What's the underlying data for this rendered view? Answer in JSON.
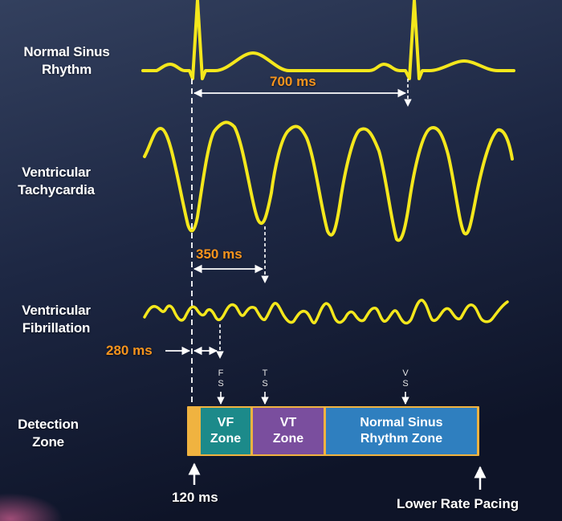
{
  "rows": {
    "nsr_line1": "Normal Sinus",
    "nsr_line2": "Rhythm",
    "vt_line1": "Ventricular",
    "vt_line2": "Tachycardia",
    "vf_line1": "Ventricular",
    "vf_line2": "Fibrillation",
    "dz_line1": "Detection",
    "dz_line2": "Zone"
  },
  "intervals": {
    "nsr": "700 ms",
    "vt": "350 ms",
    "vf": "280 ms",
    "min": "120 ms"
  },
  "markers": {
    "fs_1": "F",
    "fs_2": "S",
    "ts_1": "T",
    "ts_2": "S",
    "vs_1": "V",
    "vs_2": "S"
  },
  "zones": {
    "vf_1": "VF",
    "vf_2": "Zone",
    "vt_1": "VT",
    "vt_2": "Zone",
    "nsr_1": "Normal Sinus",
    "nsr_2": "Rhythm Zone"
  },
  "lower_rate_pacing": "Lower Rate Pacing",
  "colors": {
    "waveform": "#f4e71c",
    "interval_text": "#f7941d",
    "zone_border": "#f0b340",
    "vf_zone": "#1c8a8a",
    "vt_zone": "#7a4e9e",
    "nsr_zone": "#2f7fbf",
    "background_top": "#2a3550",
    "background_bottom": "#10162a"
  }
}
